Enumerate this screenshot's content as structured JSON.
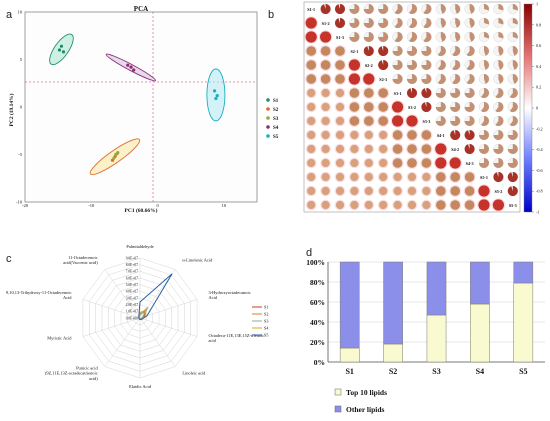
{
  "chart_data": [
    {
      "panel": "a",
      "type": "scatter",
      "title": "PCA",
      "xlabel": "PC1 (60.66%)",
      "ylabel": "PC2 (19.14%)",
      "xlim": [
        -20,
        15
      ],
      "ylim": [
        -10,
        10
      ],
      "xticks": [
        "-20",
        "-10",
        "0",
        "10"
      ],
      "yticks": [
        "10",
        "5",
        "0",
        "-5",
        "-10"
      ],
      "legend_position": "right",
      "series": [
        {
          "name": "S1",
          "color": "#1f8f6a",
          "points": [
            [
              -14.8,
              6.0
            ],
            [
              -14.5,
              6.4
            ],
            [
              -14.2,
              5.8
            ]
          ]
        },
        {
          "name": "S2",
          "color": "#e0692a",
          "points": [
            [
              -6.8,
              -5.6
            ],
            [
              -6.4,
              -5.2
            ],
            [
              -6.1,
              -4.9
            ]
          ]
        },
        {
          "name": "S3",
          "color": "#8fae3c",
          "points": [
            [
              -6.6,
              -5.4
            ],
            [
              -6.3,
              -5.0
            ],
            [
              -6.0,
              -4.8
            ]
          ]
        },
        {
          "name": "S4",
          "color": "#8a2d73",
          "points": [
            [
              -4.5,
              4.4
            ],
            [
              -4.0,
              4.2
            ],
            [
              -3.6,
              3.9
            ]
          ]
        },
        {
          "name": "S5",
          "color": "#1aaec1",
          "points": [
            [
              8.6,
              1.7
            ],
            [
              9.0,
              1.2
            ],
            [
              8.8,
              0.9
            ]
          ]
        }
      ]
    },
    {
      "panel": "b",
      "type": "heatmap",
      "labels": [
        "S1-1",
        "S1-2",
        "S1-3",
        "S2-1",
        "S2-2",
        "S2-3",
        "S3-1",
        "S3-2",
        "S3-3",
        "S4-1",
        "S4-2",
        "S4-3",
        "S5-1",
        "S5-2",
        "S5-3"
      ],
      "colorbar_ticks": [
        "1",
        "0.8",
        "0.6",
        "0.4",
        "0.2",
        "0",
        "-0.2",
        "-0.4",
        "-0.6",
        "-0.8",
        "-1"
      ],
      "colorbar_range": [
        -1,
        1
      ],
      "lower_colors": {
        "c1": "#c6332a",
        "c2": "#c4875e",
        "c3": "#d9a07c"
      }
    },
    {
      "panel": "c",
      "type": "radar",
      "axes": [
        "Palmitaldehyde",
        "α-Linolenic Acid",
        "3-Hydroxyoctadecanoic Acid",
        "Octadeca-11E,13E,15Z-trienoic acid",
        "Linoleic acid",
        "Elaidic Acid",
        "Punicic acid (9Z,11E,13Z-octadecatrienoic acid)",
        "Myristic Acid",
        "9,10,13-Trihydroxy-11-Octadecenoic Acid",
        "11-Octadecenoic acid(Vaccenic acid)"
      ],
      "radial_ticks": [
        "0.0E+00",
        "1.0E+07",
        "2.0E+07",
        "3.0E+07",
        "4.0E+07",
        "5.0E+07",
        "6.0E+07",
        "7.0E+07",
        "8.0E+07",
        "9.0E+07"
      ],
      "rmax": 90000000,
      "series": [
        {
          "name": "S1",
          "color": "#c0392b",
          "values": [
            5000000,
            18000000,
            6000000,
            3000000,
            2000000,
            1500000,
            1500000,
            1000000,
            1500000,
            2000000
          ]
        },
        {
          "name": "S2",
          "color": "#e67e22",
          "values": [
            6000000,
            12000000,
            5000000,
            2500000,
            2000000,
            1500000,
            1500000,
            1000000,
            1500000,
            2500000
          ]
        },
        {
          "name": "S3",
          "color": "#95a5a6",
          "values": [
            4000000,
            20000000,
            4000000,
            2000000,
            1500000,
            1000000,
            1000000,
            1000000,
            1000000,
            2000000
          ]
        },
        {
          "name": "S4",
          "color": "#d4ac0d",
          "values": [
            8000000,
            15000000,
            9000000,
            3000000,
            2500000,
            2000000,
            1500000,
            1500000,
            1500000,
            3000000
          ]
        },
        {
          "name": "S5",
          "color": "#2c5f9e",
          "values": [
            24000000,
            82000000,
            11000000,
            4000000,
            3000000,
            2000000,
            2000000,
            1500000,
            2000000,
            3000000
          ]
        }
      ]
    },
    {
      "panel": "d",
      "type": "bar",
      "stacked": true,
      "categories": [
        "S1",
        "S2",
        "S3",
        "S4",
        "S5"
      ],
      "yticks": [
        "0%",
        "20%",
        "40%",
        "60%",
        "80%",
        "100%"
      ],
      "ylim": [
        0,
        100
      ],
      "grid": true,
      "series": [
        {
          "name": "Top 10 lipids",
          "color": "#fafad0",
          "values": [
            14,
            18,
            47,
            58,
            79
          ]
        },
        {
          "name": "Other lipids",
          "color": "#8c8fea",
          "values": [
            86,
            82,
            53,
            42,
            21
          ]
        }
      ]
    }
  ]
}
